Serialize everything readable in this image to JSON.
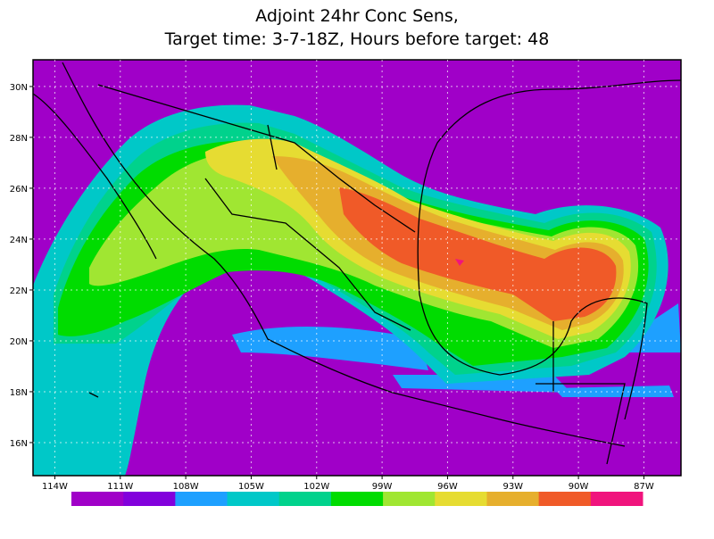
{
  "map": {
    "title": [
      "Adjoint 24hr Conc Sens,",
      "Target time: 3-7-18Z, Hours before target: 48"
    ],
    "xlim": [
      -115,
      -85.3
    ],
    "ylim": [
      14.7,
      31.05
    ],
    "xticks": [
      {
        "value": -114,
        "label": "114W"
      },
      {
        "value": -111,
        "label": "111W"
      },
      {
        "value": -108,
        "label": "108W"
      },
      {
        "value": -105,
        "label": "105W"
      },
      {
        "value": -102,
        "label": "102W"
      },
      {
        "value": -99,
        "label": "99W"
      },
      {
        "value": -96,
        "label": "96W"
      },
      {
        "value": -93,
        "label": "93W"
      },
      {
        "value": -90,
        "label": "90W"
      },
      {
        "value": -87,
        "label": "87W"
      }
    ],
    "yticks": [
      {
        "value": 16,
        "label": "16N"
      },
      {
        "value": 18,
        "label": "18N"
      },
      {
        "value": 20,
        "label": "20N"
      },
      {
        "value": 22,
        "label": "22N"
      },
      {
        "value": 24,
        "label": "24N"
      },
      {
        "value": 26,
        "label": "26N"
      },
      {
        "value": 28,
        "label": "28N"
      },
      {
        "value": 30,
        "label": "30N"
      }
    ],
    "grid": true,
    "colorbar": [
      "#a000c8",
      "#8200dc",
      "#1ea0ff",
      "#00c8c8",
      "#00d28c",
      "#00dc00",
      "#a0e632",
      "#e6dc32",
      "#e6af2d",
      "#f05a28",
      "#f0147d"
    ]
  }
}
